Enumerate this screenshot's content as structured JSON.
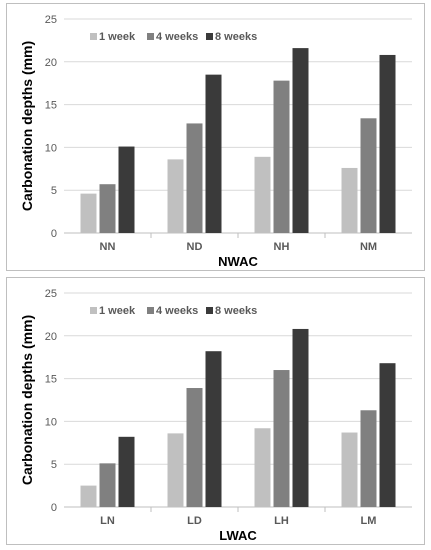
{
  "colors": {
    "series": [
      "#c0c0c0",
      "#808080",
      "#3a3a3a"
    ],
    "grid": "#d9d9d9",
    "axis": "#bfbfbf"
  },
  "chart_data": [
    {
      "type": "bar",
      "xlabel": "NWAC",
      "ylabel": "Carbonation depths (mm)",
      "ylim": [
        0,
        25
      ],
      "yticks": [
        0,
        5,
        10,
        15,
        20,
        25
      ],
      "grid": true,
      "legend": "top-left",
      "categories": [
        "NN",
        "ND",
        "NH",
        "NM"
      ],
      "series": [
        {
          "name": "1 week",
          "values": [
            4.6,
            8.6,
            8.9,
            7.6
          ]
        },
        {
          "name": "4 weeks",
          "values": [
            5.7,
            12.8,
            17.8,
            13.4
          ]
        },
        {
          "name": "8 weeks",
          "values": [
            10.1,
            18.5,
            21.6,
            20.8
          ]
        }
      ]
    },
    {
      "type": "bar",
      "xlabel": "LWAC",
      "ylabel": "Carbonation depths (mm)",
      "ylim": [
        0,
        25
      ],
      "yticks": [
        0,
        5,
        10,
        15,
        20,
        25
      ],
      "grid": true,
      "legend": "top-left",
      "categories": [
        "LN",
        "LD",
        "LH",
        "LM"
      ],
      "series": [
        {
          "name": "1 week",
          "values": [
            2.5,
            8.6,
            9.2,
            8.7
          ]
        },
        {
          "name": "4 weeks",
          "values": [
            5.1,
            13.9,
            16.0,
            11.3
          ]
        },
        {
          "name": "8 weeks",
          "values": [
            8.2,
            18.2,
            20.8,
            16.8
          ]
        }
      ]
    }
  ]
}
